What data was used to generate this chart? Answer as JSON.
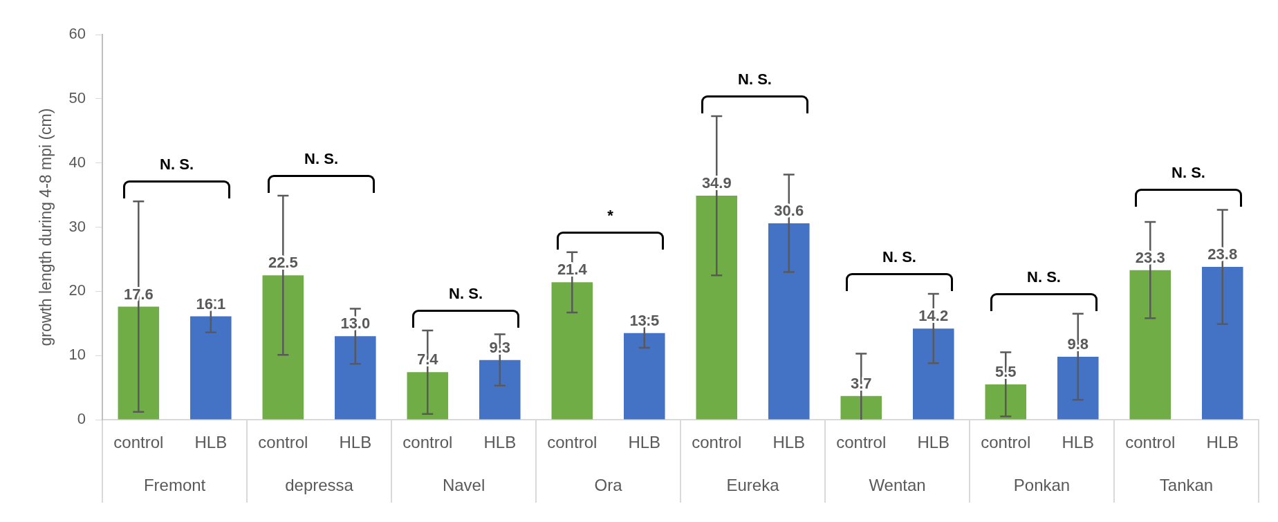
{
  "chart_data": {
    "type": "bar",
    "ylabel": "growth length during 4-8 mpi (cm)",
    "categories": [
      "Fremont",
      "depressa",
      "Navel",
      "Ora",
      "Eureka",
      "Wentan",
      "Ponkan",
      "Tankan"
    ],
    "series": [
      {
        "name": "control",
        "color": "#70ad47",
        "values": [
          17.6,
          22.5,
          7.4,
          21.4,
          34.9,
          3.7,
          5.5,
          23.3
        ],
        "errors": [
          16.4,
          12.4,
          6.5,
          4.7,
          12.4,
          6.6,
          5.0,
          7.5
        ],
        "value_labels": [
          "17.6",
          "22.5",
          "7.4",
          "21.4",
          "34.9",
          "3.7",
          "5.5",
          "23.3"
        ]
      },
      {
        "name": "HLB",
        "color": "#4472c4",
        "values": [
          16.1,
          13.0,
          9.3,
          13.5,
          30.6,
          14.2,
          9.8,
          23.8
        ],
        "errors": [
          2.5,
          4.3,
          4.0,
          2.3,
          7.6,
          5.4,
          6.7,
          8.9
        ],
        "value_labels": [
          "16.1",
          "13.0",
          "9.3",
          "13.5",
          "30.6",
          "14.2",
          "9.8",
          "23.8"
        ]
      }
    ],
    "ylim": [
      0,
      60
    ],
    "yticks": [
      0,
      10,
      20,
      30,
      40,
      50,
      60
    ],
    "grid": false,
    "legend": false,
    "annotations": [
      "N. S.",
      "N. S.",
      "N. S.",
      "*",
      "N. S.",
      "N. S.",
      "N. S.",
      "N. S."
    ]
  }
}
